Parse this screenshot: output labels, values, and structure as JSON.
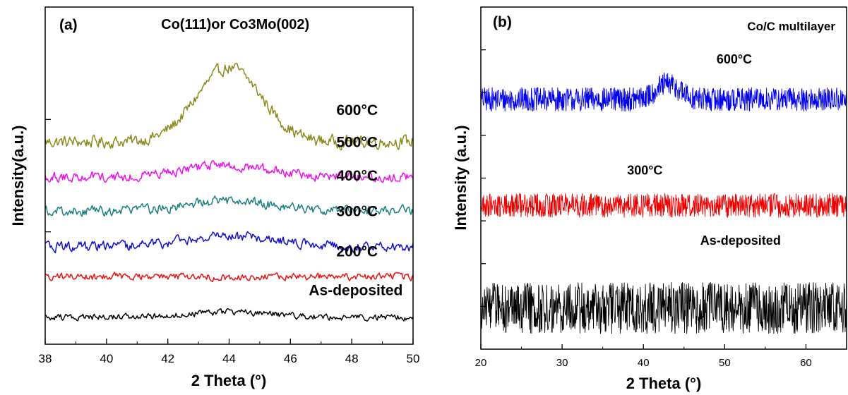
{
  "chart_data": [
    {
      "type": "line",
      "panel_label": "(a)",
      "title": "",
      "xlabel": "2 Theta (°)",
      "ylabel": "Intensity(a.u.)",
      "xlim": [
        38,
        50
      ],
      "x_ticks": [
        38,
        40,
        42,
        44,
        46,
        48,
        50
      ],
      "y_ticks_labeled": false,
      "grid": false,
      "legend": "none",
      "annotations": [
        {
          "text": "Co(111)or Co3Mo(002)",
          "x": 44.2,
          "y": 9.35
        }
      ],
      "series": [
        {
          "name": "600°C",
          "color": "#8b8a1c",
          "baseline": 6.0,
          "amplitude": 0.28,
          "peaks": [
            {
              "center": 44.0,
              "height": 2.2,
              "width": 1.5
            }
          ],
          "label_at": [
            47.5,
            6.8
          ]
        },
        {
          "name": "500°C",
          "color": "#ee11ee",
          "baseline": 4.95,
          "amplitude": 0.22,
          "peaks": [
            {
              "center": 44.0,
              "height": 0.35,
              "width": 2.0
            }
          ],
          "label_at": [
            47.5,
            5.85
          ]
        },
        {
          "name": "400°C",
          "color": "#1a8080",
          "baseline": 3.95,
          "amplitude": 0.22,
          "peaks": [
            {
              "center": 44.0,
              "height": 0.3,
              "width": 2.0
            }
          ],
          "label_at": [
            47.5,
            4.85
          ]
        },
        {
          "name": "300°C",
          "color": "#1111cc",
          "baseline": 2.9,
          "amplitude": 0.22,
          "peaks": [
            {
              "center": 44.0,
              "height": 0.3,
              "width": 2.0
            }
          ],
          "label_at": [
            47.5,
            3.8
          ]
        },
        {
          "name": "200°C",
          "color": "#ee1111",
          "baseline": 2.0,
          "amplitude": 0.16,
          "peaks": [],
          "label_at": [
            47.5,
            2.6
          ]
        },
        {
          "name": "As-deposited",
          "color": "#000000",
          "baseline": 0.8,
          "amplitude": 0.14,
          "peaks": [
            {
              "center": 44.0,
              "height": 0.15,
              "width": 2.0
            }
          ],
          "label_at": [
            46.6,
            1.45
          ]
        }
      ]
    },
    {
      "type": "line",
      "panel_label": "(b)",
      "title": "Co/C multilayer",
      "xlabel": "2 Theta (°)",
      "ylabel": "Intensity (a.u.)",
      "xlim": [
        20,
        65
      ],
      "x_ticks": [
        20,
        30,
        40,
        50,
        60
      ],
      "y_ticks_labeled": false,
      "grid": false,
      "legend": "none",
      "series": [
        {
          "name": "600°C",
          "color": "#0000ee",
          "baseline": 7.3,
          "amplitude": 0.35,
          "peaks": [
            {
              "center": 43.0,
              "height": 0.45,
              "width": 2.0
            }
          ],
          "label_at": [
            49,
            8.35
          ]
        },
        {
          "name": "300°C",
          "color": "#ee0000",
          "baseline": 4.2,
          "amplitude": 0.35,
          "peaks": [],
          "label_at": [
            38,
            5.1
          ]
        },
        {
          "name": "As-deposited",
          "color": "#000000",
          "baseline": 1.2,
          "amplitude": 0.75,
          "peaks": [],
          "label_at": [
            47,
            3.05
          ]
        }
      ]
    }
  ]
}
